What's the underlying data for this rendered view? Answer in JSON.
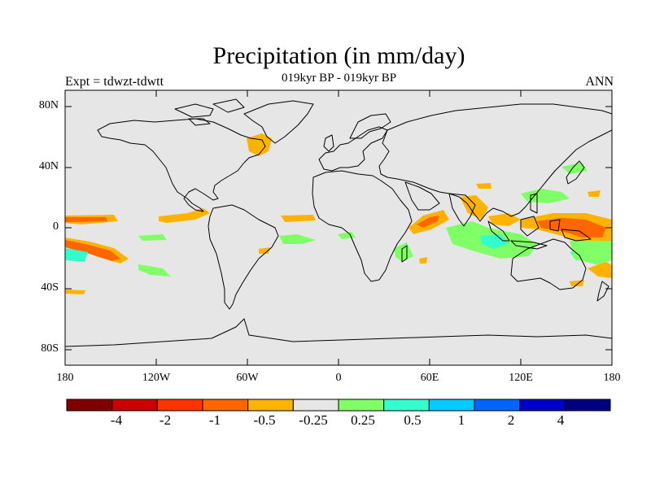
{
  "header": {
    "title": "Precipitation (in mm/day)",
    "subtitle": "019kyr BP - 019kyr BP",
    "experiment": "Expt = tdwzt-tdwtt",
    "season": "ANN"
  },
  "axes": {
    "lat_labels": [
      "80N",
      "40N",
      "0",
      "40S",
      "80S"
    ],
    "lon_labels": [
      "180",
      "120W",
      "60W",
      "0",
      "60E",
      "120E",
      "180"
    ]
  },
  "colorbar": {
    "colors": [
      "#800000",
      "#cc0000",
      "#ff3300",
      "#ff6600",
      "#ffb300",
      "#e6e6e6",
      "#80ff66",
      "#33ffcc",
      "#00ccff",
      "#0066ff",
      "#0000cc",
      "#000080"
    ],
    "labels": [
      "-4",
      "-2",
      "-1",
      "-0.5",
      "-0.25",
      "0.25",
      "0.5",
      "1",
      "2",
      "4"
    ]
  },
  "map": {
    "ocean_color": "#e6e6e6",
    "coast_color": "#000000"
  }
}
